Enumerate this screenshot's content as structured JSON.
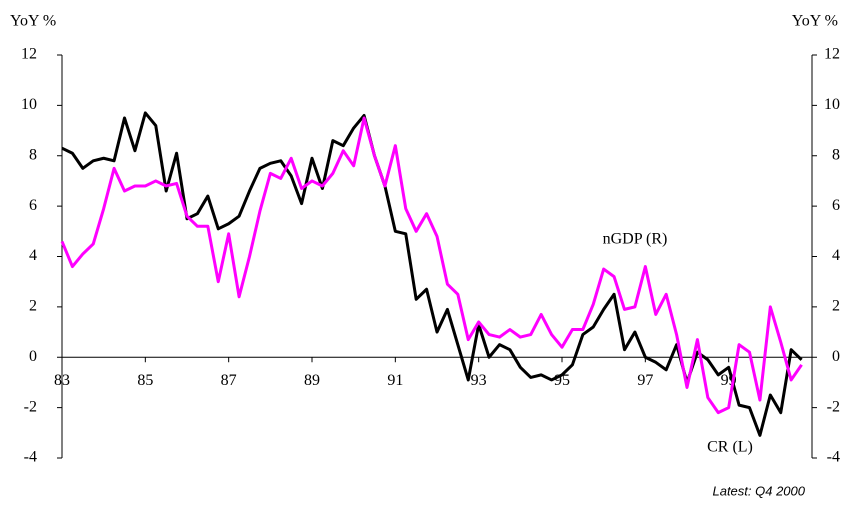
{
  "chart_data": {
    "type": "line",
    "ylabel": "YoY %",
    "y2label": "YoY %",
    "footnote": "Latest: Q4 2000",
    "x": [
      83,
      83.25,
      83.5,
      83.75,
      84,
      84.25,
      84.5,
      84.75,
      85,
      85.25,
      85.5,
      85.75,
      86,
      86.25,
      86.5,
      86.75,
      87,
      87.25,
      87.5,
      87.75,
      88,
      88.25,
      88.5,
      88.75,
      89,
      89.25,
      89.5,
      89.75,
      90,
      90.25,
      90.5,
      90.75,
      91,
      91.25,
      91.5,
      91.75,
      92,
      92.25,
      92.5,
      92.75,
      93,
      93.25,
      93.5,
      93.75,
      94,
      94.25,
      94.5,
      94.75,
      95,
      95.25,
      95.5,
      95.75,
      96,
      96.25,
      96.5,
      96.75,
      97,
      97.25,
      97.5,
      97.75,
      98,
      98.25,
      98.5,
      98.75,
      99,
      99.25,
      99.5,
      99.75,
      100,
      100.25,
      100.5,
      100.75
    ],
    "xlim": [
      83,
      101
    ],
    "xticks": [
      83,
      85,
      87,
      89,
      91,
      93,
      95,
      97,
      99
    ],
    "ylim": [
      -4,
      12
    ],
    "yticks": [
      -4,
      -2,
      0,
      2,
      4,
      6,
      8,
      10,
      12
    ],
    "y2lim": [
      -4,
      12
    ],
    "y2ticks": [
      -4,
      -2,
      0,
      2,
      4,
      6,
      8,
      10,
      12
    ],
    "series": [
      {
        "name": "CR (L)",
        "color": "#000000",
        "axis": "y",
        "values": [
          8.3,
          8.1,
          7.5,
          7.8,
          7.9,
          7.8,
          9.5,
          8.2,
          9.7,
          9.2,
          6.6,
          8.1,
          5.5,
          5.7,
          6.4,
          5.1,
          5.3,
          5.6,
          6.6,
          7.5,
          7.7,
          7.8,
          7.2,
          6.1,
          7.9,
          6.7,
          8.6,
          8.4,
          9.1,
          9.6,
          8.0,
          6.8,
          5.0,
          4.9,
          2.3,
          2.7,
          1.0,
          1.9,
          0.5,
          -0.9,
          1.3,
          0.0,
          0.5,
          0.3,
          -0.4,
          -0.8,
          -0.7,
          -0.9,
          -0.7,
          -0.3,
          0.9,
          1.2,
          1.9,
          2.5,
          0.3,
          1.0,
          0.0,
          -0.2,
          -0.5,
          0.5,
          -1.0,
          0.2,
          -0.1,
          -0.7,
          -0.4,
          -1.9,
          -2.0,
          -3.1,
          -1.5,
          -2.2,
          0.3,
          -0.1
        ]
      },
      {
        "name": "nGDP (R)",
        "color": "#ff00ff",
        "axis": "y2",
        "values": [
          4.6,
          3.6,
          4.1,
          4.5,
          5.9,
          7.5,
          6.6,
          6.8,
          6.8,
          7.0,
          6.8,
          6.9,
          5.6,
          5.2,
          5.2,
          3.0,
          4.9,
          2.4,
          4.0,
          5.8,
          7.3,
          7.1,
          7.9,
          6.7,
          7.0,
          6.8,
          7.3,
          8.2,
          7.6,
          9.5,
          8.0,
          6.8,
          8.4,
          5.9,
          5.0,
          5.7,
          4.8,
          2.9,
          2.5,
          0.7,
          1.4,
          0.9,
          0.8,
          1.1,
          0.8,
          0.9,
          1.7,
          0.9,
          0.4,
          1.1,
          1.1,
          2.1,
          3.5,
          3.2,
          1.9,
          2.0,
          3.6,
          1.7,
          2.5,
          0.9,
          -1.2,
          0.7,
          -1.6,
          -2.2,
          -2.0,
          0.5,
          0.2,
          -1.7,
          2.0,
          0.6,
          -0.9,
          -0.3
        ]
      }
    ]
  }
}
